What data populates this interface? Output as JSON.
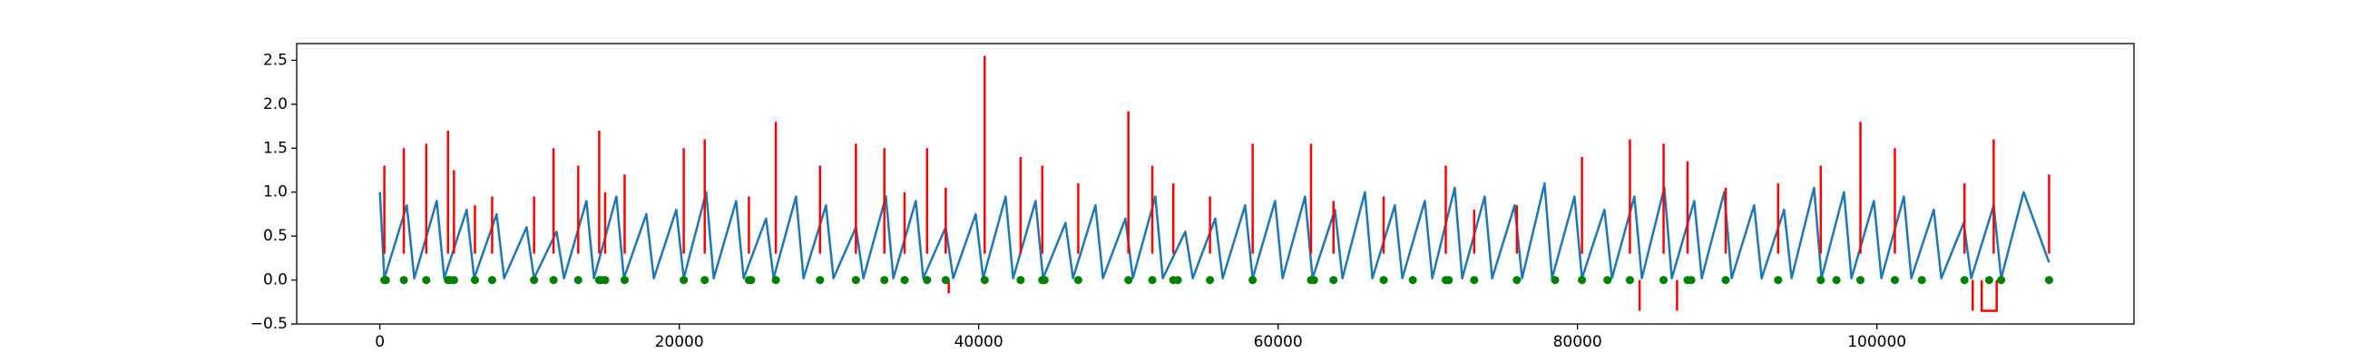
{
  "chart_data": {
    "type": "line",
    "xlim": [
      -5556,
      117172
    ],
    "ylim": [
      -0.5,
      2.69
    ],
    "xticks": [
      0,
      20000,
      40000,
      60000,
      80000,
      100000
    ],
    "yticks": [
      {
        "value": -0.5,
        "label": "−0.5"
      },
      {
        "value": 0,
        "label": "0.0"
      },
      0.5,
      {
        "value": 1,
        "label": "1.0"
      },
      1.5,
      {
        "value": 2,
        "label": "2.0"
      },
      2.5
    ],
    "series": [
      {
        "kind": "line",
        "color": "#1f77b4",
        "x": [
          0,
          300,
          1800,
          2300,
          3800,
          4300,
          5800,
          6300,
          7800,
          8300,
          9800,
          10300,
          11800,
          12300,
          13800,
          14300,
          15800,
          16300,
          17800,
          18300,
          19800,
          20300,
          21800,
          22300,
          23800,
          24300,
          25800,
          26300,
          27800,
          28300,
          29800,
          30300,
          31800,
          32300,
          33800,
          34300,
          35800,
          36300,
          37800,
          38300,
          39800,
          40300,
          41800,
          42300,
          43800,
          44300,
          45800,
          46300,
          47800,
          48300,
          49800,
          50300,
          51800,
          52300,
          53800,
          54300,
          55800,
          56300,
          57800,
          58300,
          59800,
          60300,
          61800,
          62300,
          63800,
          64300,
          65800,
          66300,
          67800,
          68300,
          69800,
          70300,
          71800,
          72300,
          73800,
          74300,
          75800,
          76300,
          77800,
          78300,
          79800,
          80300,
          81800,
          82300,
          83800,
          84300,
          85800,
          86300,
          87800,
          88300,
          89800,
          90300,
          91800,
          92300,
          93800,
          94300,
          95800,
          96300,
          97800,
          98300,
          99800,
          100300,
          101800,
          102300,
          103800,
          104300,
          105800,
          106300,
          107800,
          108300,
          109800,
          111500
        ],
        "values": [
          1.0,
          0.02,
          0.85,
          0.02,
          0.9,
          0.02,
          0.8,
          0.02,
          0.75,
          0.02,
          0.6,
          0.02,
          0.55,
          0.02,
          0.9,
          0.02,
          0.95,
          0.02,
          0.75,
          0.02,
          0.8,
          0.02,
          1.0,
          0.02,
          0.9,
          0.02,
          0.7,
          0.02,
          0.95,
          0.02,
          0.85,
          0.02,
          0.6,
          0.02,
          0.95,
          0.02,
          0.9,
          0.02,
          0.6,
          0.02,
          0.75,
          0.02,
          0.95,
          0.02,
          0.9,
          0.02,
          0.65,
          0.02,
          0.85,
          0.02,
          0.7,
          0.02,
          0.95,
          0.02,
          0.55,
          0.02,
          0.7,
          0.02,
          0.85,
          0.02,
          0.9,
          0.02,
          0.95,
          0.02,
          0.8,
          0.02,
          1.0,
          0.02,
          0.85,
          0.02,
          0.9,
          0.02,
          1.05,
          0.02,
          0.95,
          0.02,
          0.85,
          0.02,
          1.1,
          0.02,
          0.95,
          0.02,
          0.8,
          0.02,
          0.95,
          0.02,
          1.05,
          0.02,
          0.9,
          0.02,
          1.0,
          0.02,
          0.85,
          0.02,
          0.8,
          0.02,
          1.05,
          0.02,
          1.0,
          0.02,
          0.9,
          0.02,
          0.95,
          0.02,
          0.8,
          0.02,
          0.65,
          0.02,
          0.85,
          0.02,
          1.0,
          0.2
        ]
      },
      {
        "kind": "line",
        "color": "#ff0000",
        "x": [
          300,
          300,
          null,
          1600,
          1600,
          null,
          3100,
          3100,
          null,
          4550,
          4550,
          null,
          4950,
          4950,
          null,
          6350,
          6350,
          null,
          7500,
          7500,
          null,
          10300,
          10300,
          null,
          11600,
          11600,
          null,
          13250,
          13250,
          null,
          14650,
          14650,
          null,
          15050,
          15050,
          null,
          16350,
          16350,
          null,
          20300,
          20300,
          null,
          21700,
          21700,
          null,
          24650,
          24650,
          null,
          26450,
          26450,
          null,
          29400,
          29400,
          null,
          31800,
          31800,
          null,
          33700,
          33700,
          null,
          35050,
          35050,
          null,
          36550,
          36550,
          null,
          37800,
          37800,
          null,
          38000,
          38000,
          null,
          40400,
          40400,
          null,
          42800,
          42800,
          null,
          44250,
          44250,
          null,
          46650,
          46650,
          null,
          50000,
          50000,
          null,
          51600,
          51600,
          null,
          53000,
          53000,
          null,
          55450,
          55450,
          null,
          58300,
          58300,
          null,
          62200,
          62200,
          null,
          63700,
          63700,
          null,
          67050,
          67050,
          null,
          71200,
          71200,
          null,
          73100,
          73100,
          null,
          75950,
          75950,
          null,
          80300,
          80300,
          null,
          83500,
          83500,
          null,
          84150,
          84150,
          null,
          85750,
          85750,
          null,
          86650,
          86650,
          null,
          87350,
          87350,
          null,
          89900,
          89900,
          null,
          93400,
          93400,
          null,
          96250,
          96250,
          null,
          98900,
          98900,
          null,
          101200,
          101200,
          null,
          105850,
          105850,
          null,
          106400,
          106400,
          null,
          107000,
          107000,
          108000,
          108000,
          null,
          107800,
          107800,
          null,
          111500,
          111500
        ],
        "values": [
          0.3,
          1.3,
          null,
          0.3,
          1.5,
          null,
          0.3,
          1.55,
          null,
          0.3,
          1.7,
          null,
          0.3,
          1.25,
          null,
          0.3,
          0.85,
          null,
          0.3,
          0.95,
          null,
          0.3,
          0.95,
          null,
          0.3,
          1.5,
          null,
          0.3,
          1.3,
          null,
          0.3,
          1.7,
          null,
          0.3,
          1.0,
          null,
          0.3,
          1.2,
          null,
          0.3,
          1.5,
          null,
          0.3,
          1.6,
          null,
          0.3,
          0.95,
          null,
          0.3,
          1.8,
          null,
          0.3,
          1.3,
          null,
          0.3,
          1.55,
          null,
          0.3,
          1.5,
          null,
          0.3,
          1.0,
          null,
          0.3,
          1.5,
          null,
          0.3,
          1.05,
          null,
          0,
          -0.15,
          null,
          0.3,
          2.55,
          null,
          0.3,
          1.4,
          null,
          0.3,
          1.3,
          null,
          0.3,
          1.1,
          null,
          0.3,
          1.92,
          null,
          0.3,
          1.3,
          null,
          0.3,
          1.1,
          null,
          0.3,
          0.95,
          null,
          0.3,
          1.55,
          null,
          0.3,
          1.55,
          null,
          0.3,
          0.9,
          null,
          0.3,
          0.95,
          null,
          0.3,
          1.3,
          null,
          0.3,
          0.8,
          null,
          0.3,
          0.85,
          null,
          0.3,
          1.4,
          null,
          0.3,
          1.6,
          null,
          0,
          -0.35,
          null,
          0.3,
          1.55,
          null,
          0,
          -0.35,
          null,
          0.3,
          1.35,
          null,
          0.3,
          1.05,
          null,
          0.3,
          1.1,
          null,
          0.3,
          1.3,
          null,
          0.3,
          1.8,
          null,
          0.3,
          1.5,
          null,
          0.3,
          1.1,
          null,
          0,
          -0.35,
          null,
          0,
          -0.35,
          -0.35,
          0,
          null,
          0.3,
          1.6,
          null,
          0.3,
          1.2
        ]
      },
      {
        "kind": "scatter",
        "color": "#008000",
        "x": [
          300,
          400,
          1600,
          3100,
          4550,
          4700,
          4950,
          6350,
          7500,
          10300,
          11600,
          13250,
          14650,
          14800,
          15050,
          16350,
          20300,
          21700,
          24650,
          24800,
          26450,
          29400,
          31800,
          33700,
          35050,
          36550,
          37800,
          40400,
          42800,
          44250,
          44400,
          46650,
          50000,
          51600,
          53000,
          53300,
          55450,
          58300,
          62200,
          62400,
          63700,
          67050,
          69000,
          71200,
          71400,
          73100,
          75950,
          78500,
          80300,
          82000,
          83500,
          85750,
          87350,
          87600,
          89900,
          93400,
          96250,
          97300,
          98900,
          101200,
          103000,
          105850,
          107500,
          108300,
          111500
        ],
        "values": [
          0,
          0,
          0,
          0,
          0,
          0,
          0,
          0,
          0,
          0,
          0,
          0,
          0,
          0,
          0,
          0,
          0,
          0,
          0,
          0,
          0,
          0,
          0,
          0,
          0,
          0,
          0,
          0,
          0,
          0,
          0,
          0,
          0,
          0,
          0,
          0,
          0,
          0,
          0,
          0,
          0,
          0,
          0,
          0,
          0,
          0,
          0,
          0,
          0,
          0,
          0,
          0,
          0,
          0,
          0,
          0,
          0,
          0,
          0,
          0,
          0,
          0,
          0,
          0,
          0
        ]
      }
    ]
  }
}
